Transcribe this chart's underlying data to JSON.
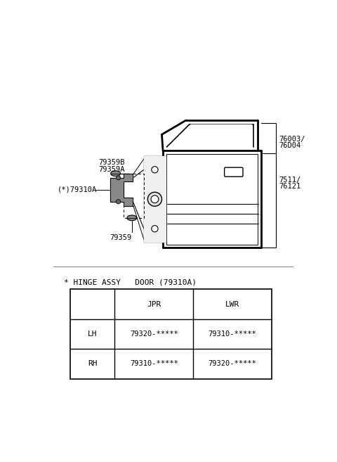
{
  "bg_color": "#ffffff",
  "table_title": "* HINGE ASSY   DOOR (79310A)",
  "col_headers": [
    "JPR",
    "LWR"
  ],
  "row_labels": [
    "LH",
    "RH"
  ],
  "table_data": [
    [
      "79320-*****",
      "79310-*****"
    ],
    [
      "79310-*****",
      "79320-*****"
    ]
  ],
  "label_79359B": "79359B",
  "label_79359A": "79359A",
  "label_79310A": "(*)79310A",
  "label_79359": "79359",
  "label_76003": "76003/",
  "label_76D04": "76D04",
  "label_7511": "7511/",
  "label_76121": "76121"
}
